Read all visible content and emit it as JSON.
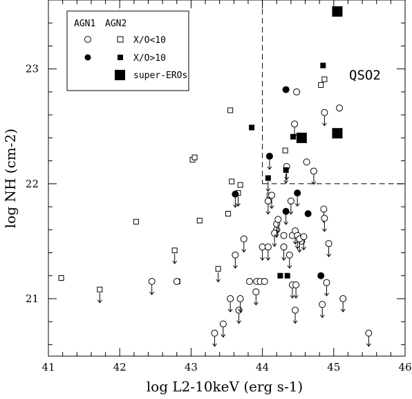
{
  "chart_data": {
    "type": "scatter",
    "xlabel": "log L2-10keV (erg s-1)",
    "ylabel": "log NH (cm-2)",
    "x_ticks": [
      "41",
      "42",
      "43",
      "44",
      "45",
      "46"
    ],
    "y_ticks": [
      "21",
      "22",
      "23"
    ],
    "xlim": [
      41,
      46
    ],
    "ylim": [
      20.5,
      23.6
    ],
    "grid": false,
    "legend_position": "top-left",
    "legend": {
      "col_agn1": "AGN1",
      "col_agn2": "AGN2",
      "row_low": "X/O<10",
      "row_high": "X/O>10",
      "row_super": "super-EROs"
    },
    "annotation": "QSO2",
    "qso2_region": {
      "x_min": 44.0,
      "y_min": 22.0
    },
    "series": {
      "agn2_open_squares": [
        [
          41.18,
          21.18
        ],
        [
          42.23,
          21.67
        ],
        [
          43.02,
          22.21
        ],
        [
          43.05,
          22.23
        ],
        [
          43.12,
          21.68
        ],
        [
          42.81,
          21.15
        ],
        [
          43.52,
          21.74
        ],
        [
          43.57,
          22.02
        ],
        [
          43.55,
          22.64
        ],
        [
          43.69,
          21.99
        ],
        [
          44.82,
          22.86
        ],
        [
          44.87,
          22.91
        ],
        [
          44.1,
          21.9
        ],
        [
          44.32,
          22.29
        ]
      ],
      "agn2_open_squares_upper": [
        [
          41.72,
          21.08
        ],
        [
          42.77,
          21.42
        ],
        [
          43.38,
          21.26
        ],
        [
          43.66,
          21.92
        ]
      ],
      "agn1_open_circles": [
        [
          42.8,
          21.15
        ],
        [
          43.82,
          21.15
        ],
        [
          43.92,
          21.15
        ],
        [
          43.97,
          21.15
        ],
        [
          44.03,
          21.15
        ],
        [
          44.3,
          21.55
        ],
        [
          44.2,
          21.6
        ],
        [
          44.42,
          21.55
        ],
        [
          44.55,
          21.5
        ],
        [
          44.62,
          22.19
        ],
        [
          44.48,
          22.8
        ],
        [
          45.08,
          22.66
        ]
      ],
      "agn1_open_circles_upper": [
        [
          42.45,
          21.15
        ],
        [
          43.33,
          20.7
        ],
        [
          43.45,
          20.78
        ],
        [
          43.55,
          21.0
        ],
        [
          43.67,
          20.9
        ],
        [
          43.69,
          21.0
        ],
        [
          43.62,
          21.38
        ],
        [
          43.74,
          21.52
        ],
        [
          43.91,
          21.06
        ],
        [
          44.0,
          21.45
        ],
        [
          44.08,
          21.45
        ],
        [
          44.17,
          21.57
        ],
        [
          44.2,
          21.65
        ],
        [
          44.22,
          21.69
        ],
        [
          44.3,
          21.45
        ],
        [
          44.38,
          21.38
        ],
        [
          44.42,
          21.12
        ],
        [
          44.47,
          21.12
        ],
        [
          44.46,
          20.9
        ],
        [
          44.46,
          21.59
        ],
        [
          44.49,
          21.55
        ],
        [
          44.52,
          21.52
        ],
        [
          44.34,
          22.15
        ],
        [
          44.4,
          21.85
        ],
        [
          44.45,
          22.52
        ],
        [
          44.72,
          22.11
        ],
        [
          44.84,
          20.95
        ],
        [
          44.86,
          21.78
        ],
        [
          44.87,
          21.7
        ],
        [
          44.9,
          21.14
        ],
        [
          44.93,
          21.48
        ],
        [
          44.87,
          22.62
        ],
        [
          45.13,
          21.0
        ],
        [
          45.49,
          20.7
        ],
        [
          44.08,
          21.85
        ],
        [
          44.13,
          21.9
        ],
        [
          44.58,
          21.54
        ]
      ],
      "agn1_filled_circles": [
        [
          44.33,
          22.82
        ],
        [
          44.82,
          21.2
        ],
        [
          44.64,
          21.74
        ]
      ],
      "agn1_filled_circles_upper": [
        [
          43.62,
          21.91
        ],
        [
          44.1,
          22.24
        ],
        [
          44.33,
          21.76
        ],
        [
          44.49,
          21.92
        ]
      ],
      "agn2_filled_squares": [
        [
          43.85,
          22.49
        ],
        [
          44.25,
          21.2
        ],
        [
          44.35,
          21.2
        ],
        [
          44.85,
          23.03
        ],
        [
          44.43,
          22.41
        ]
      ],
      "agn2_filled_squares_upper": [
        [
          44.08,
          22.05
        ],
        [
          44.33,
          22.12
        ]
      ],
      "super_eros": [
        [
          44.55,
          22.4
        ],
        [
          45.05,
          22.44
        ],
        [
          45.05,
          23.5
        ]
      ]
    }
  }
}
